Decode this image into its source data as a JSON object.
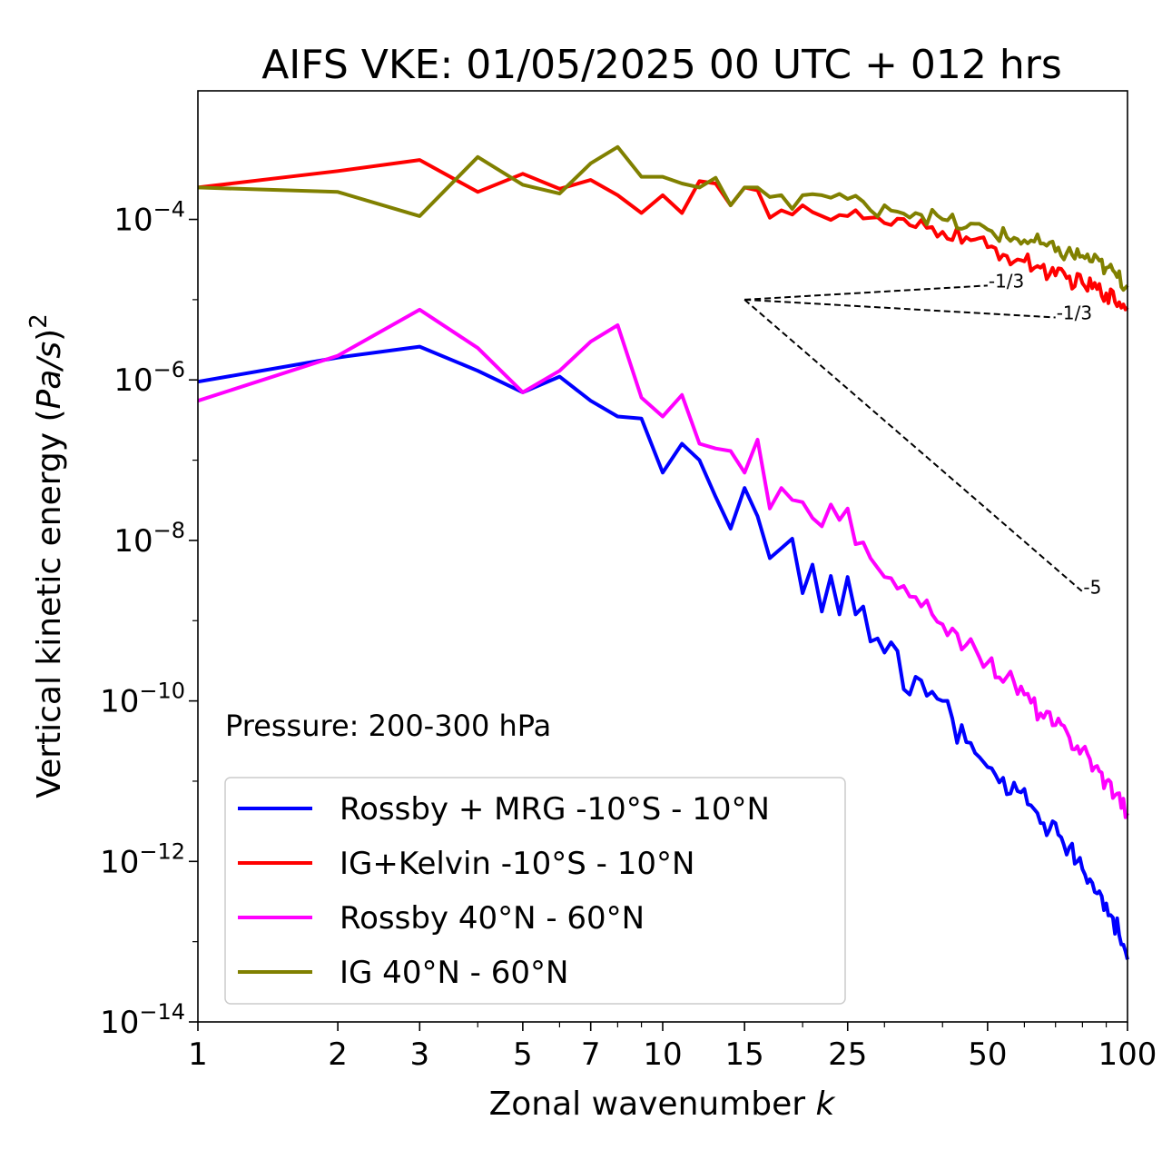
{
  "chart_data": {
    "type": "line",
    "title": "AIFS VKE: 01/05/2025 00 UTC + 012 hrs",
    "xlabel": "Zonal wavenumber k",
    "ylabel": "Vertical kinetic energy (Pa/s)^2",
    "x_scale": "log",
    "y_scale": "log",
    "xlim": [
      1,
      100
    ],
    "ylim": [
      1e-14,
      0.004
    ],
    "x_ticks": [
      1,
      2,
      3,
      5,
      7,
      10,
      15,
      25,
      50,
      100
    ],
    "x_tick_labels": [
      "1",
      "2",
      "3",
      "5",
      "7",
      "10",
      "15",
      "25",
      "50",
      "100"
    ],
    "y_ticks": [
      1e-14,
      1e-12,
      1e-10,
      1e-08,
      1e-06,
      0.0001
    ],
    "y_tick_base": "10",
    "y_tick_exponents": [
      "−14",
      "−12",
      "−10",
      "−8",
      "−6",
      "−4"
    ],
    "grid": false,
    "legend_position": "lower-left",
    "annotation": "Pressure: 200-300 hPa",
    "colors": {
      "rossby_mrg": "#0000ff",
      "ig_kelvin": "#ff0000",
      "rossby_midlat": "#ff00ff",
      "ig_midlat": "#808000",
      "reference": "#000000"
    },
    "series": [
      {
        "name": "Rossby + MRG -10°S - 10°N",
        "color": "#0000ff",
        "key": [
          [
            1,
            9.5e-07
          ],
          [
            2,
            1.9e-06
          ],
          [
            3,
            2.6e-06
          ],
          [
            4,
            1.3e-06
          ],
          [
            5,
            7e-07
          ],
          [
            6,
            1.1e-06
          ],
          [
            7,
            5.5e-07
          ],
          [
            8,
            3.5e-07
          ],
          [
            9,
            3.3e-07
          ],
          [
            10,
            7e-08
          ],
          [
            11,
            1.6e-07
          ],
          [
            12,
            1e-07
          ],
          [
            13,
            3.5e-08
          ],
          [
            14,
            1.4e-08
          ],
          [
            15,
            4.5e-08
          ],
          [
            16,
            2e-08
          ],
          [
            17,
            6e-09
          ],
          [
            18,
            8e-09
          ],
          [
            19,
            1.05e-08
          ],
          [
            20,
            2.2e-09
          ],
          [
            21,
            5e-09
          ],
          [
            22,
            1.3e-09
          ],
          [
            23,
            3.6e-09
          ],
          [
            24,
            1.2e-09
          ],
          [
            25,
            3.5e-09
          ],
          [
            26,
            1.2e-09
          ],
          [
            27,
            1.5e-09
          ],
          [
            28,
            5.5e-10
          ],
          [
            30,
            4e-10
          ],
          [
            32,
            4.2e-10
          ],
          [
            33,
            1.4e-10
          ],
          [
            34,
            1.2e-10
          ],
          [
            35,
            2e-10
          ],
          [
            36,
            1.8e-10
          ],
          [
            38,
            1.3e-10
          ],
          [
            40,
            1e-10
          ],
          [
            42,
            6e-11
          ],
          [
            43,
            3e-11
          ],
          [
            44,
            5e-11
          ],
          [
            46,
            3e-11
          ],
          [
            48,
            2e-11
          ],
          [
            50,
            1.5e-11
          ],
          [
            52,
            1.2e-11
          ],
          [
            54,
            1.1e-11
          ],
          [
            56,
            7e-12
          ],
          [
            58,
            7.5e-12
          ],
          [
            60,
            8e-12
          ],
          [
            62,
            5e-12
          ],
          [
            64,
            4e-12
          ],
          [
            66,
            3e-12
          ],
          [
            68,
            2.5e-12
          ],
          [
            70,
            3e-12
          ],
          [
            72,
            2e-12
          ],
          [
            75,
            1.5e-12
          ],
          [
            78,
            1e-12
          ],
          [
            80,
            8e-13
          ],
          [
            83,
            6e-13
          ],
          [
            86,
            4e-13
          ],
          [
            90,
            3e-13
          ],
          [
            93,
            2e-13
          ],
          [
            96,
            1.2e-13
          ],
          [
            100,
            6e-14
          ]
        ],
        "jitter": 0.28
      },
      {
        "name": "IG+Kelvin -10°S - 10°N",
        "color": "#ff0000",
        "key": [
          [
            1,
            0.00025
          ],
          [
            2,
            0.0004
          ],
          [
            3,
            0.00055
          ],
          [
            4,
            0.00022
          ],
          [
            5,
            0.00037
          ],
          [
            6,
            0.00024
          ],
          [
            7,
            0.00031
          ],
          [
            8,
            0.0002
          ],
          [
            9,
            0.00012
          ],
          [
            10,
            0.0002
          ],
          [
            11,
            0.00012
          ],
          [
            12,
            0.0003
          ],
          [
            13,
            0.00028
          ],
          [
            14,
            0.00015
          ],
          [
            15,
            0.00025
          ],
          [
            16,
            0.00023
          ],
          [
            17,
            0.000105
          ],
          [
            18,
            0.00013
          ],
          [
            20,
            0.00015
          ],
          [
            22,
            0.00011
          ],
          [
            25,
            0.00011
          ],
          [
            28,
            0.000105
          ],
          [
            30,
            9e-05
          ],
          [
            35,
            8e-05
          ],
          [
            40,
            7e-05
          ],
          [
            45,
            6e-05
          ],
          [
            50,
            4.5e-05
          ],
          [
            55,
            3.5e-05
          ],
          [
            60,
            3e-05
          ],
          [
            65,
            2.5e-05
          ],
          [
            70,
            2e-05
          ],
          [
            80,
            1.6e-05
          ],
          [
            90,
            1.2e-05
          ],
          [
            100,
            8e-06
          ]
        ],
        "jitter": 0.22
      },
      {
        "name": "Rossby 40°N - 60°N",
        "color": "#ff00ff",
        "key": [
          [
            1,
            5.5e-07
          ],
          [
            2,
            2e-06
          ],
          [
            3,
            7.5e-06
          ],
          [
            4,
            2.5e-06
          ],
          [
            5,
            7e-07
          ],
          [
            6,
            1.3e-06
          ],
          [
            7,
            3e-06
          ],
          [
            8,
            4.8e-06
          ],
          [
            9,
            6e-07
          ],
          [
            10,
            3.5e-07
          ],
          [
            11,
            6.5e-07
          ],
          [
            12,
            1.6e-07
          ],
          [
            13,
            1.4e-07
          ],
          [
            14,
            1.3e-07
          ],
          [
            15,
            7e-08
          ],
          [
            16,
            1.8e-07
          ],
          [
            17,
            2.5e-08
          ],
          [
            18,
            4.5e-08
          ],
          [
            19,
            3.2e-08
          ],
          [
            20,
            3e-08
          ],
          [
            22,
            1.5e-08
          ],
          [
            23,
            2.8e-08
          ],
          [
            24,
            1.8e-08
          ],
          [
            25,
            2.5e-08
          ],
          [
            26,
            9e-09
          ],
          [
            28,
            6e-09
          ],
          [
            30,
            3.5e-09
          ],
          [
            32,
            2.5e-09
          ],
          [
            34,
            2e-09
          ],
          [
            36,
            1.5e-09
          ],
          [
            38,
            1.2e-09
          ],
          [
            40,
            9e-10
          ],
          [
            42,
            8e-10
          ],
          [
            45,
            5e-10
          ],
          [
            48,
            3.5e-10
          ],
          [
            50,
            3e-10
          ],
          [
            55,
            2e-10
          ],
          [
            60,
            1.2e-10
          ],
          [
            65,
            7e-11
          ],
          [
            70,
            5e-11
          ],
          [
            75,
            3.5e-11
          ],
          [
            80,
            2.5e-11
          ],
          [
            85,
            1.5e-11
          ],
          [
            90,
            1e-11
          ],
          [
            95,
            7e-12
          ],
          [
            100,
            4e-12
          ]
        ],
        "jitter": 0.26
      },
      {
        "name": "IG 40°N - 60°N",
        "color": "#808000",
        "key": [
          [
            1,
            0.00025
          ],
          [
            2,
            0.00022
          ],
          [
            3,
            0.00011
          ],
          [
            4,
            0.0006
          ],
          [
            5,
            0.00027
          ],
          [
            6,
            0.00021
          ],
          [
            7,
            0.0005
          ],
          [
            8,
            0.0008
          ],
          [
            9,
            0.00034
          ],
          [
            10,
            0.00034
          ],
          [
            11,
            0.00028
          ],
          [
            12,
            0.00025
          ],
          [
            13,
            0.00033
          ],
          [
            14,
            0.00015
          ],
          [
            15,
            0.00025
          ],
          [
            16,
            0.00025
          ],
          [
            17,
            0.00019
          ],
          [
            18,
            0.0002
          ],
          [
            19,
            0.000135
          ],
          [
            20,
            0.0002
          ],
          [
            22,
            0.0002
          ],
          [
            25,
            0.00018
          ],
          [
            28,
            0.00013
          ],
          [
            30,
            0.00015
          ],
          [
            35,
            0.00012
          ],
          [
            40,
            0.0001
          ],
          [
            45,
            8e-05
          ],
          [
            50,
            7.5e-05
          ],
          [
            55,
            6e-05
          ],
          [
            60,
            5.5e-05
          ],
          [
            65,
            5e-05
          ],
          [
            70,
            4e-05
          ],
          [
            80,
            3.5e-05
          ],
          [
            90,
            2.5e-05
          ],
          [
            100,
            1.5e-05
          ]
        ],
        "jitter": 0.22
      }
    ],
    "reference_lines": [
      {
        "label": "-1/3",
        "from": [
          15,
          1e-05
        ],
        "to": [
          50,
          1.5e-05
        ]
      },
      {
        "label": "-1/3",
        "from": [
          15,
          1e-05
        ],
        "to": [
          70,
          6e-06
        ]
      },
      {
        "label": "-5",
        "from": [
          15,
          1e-05
        ],
        "to": [
          80,
          2.3e-09
        ]
      }
    ]
  }
}
